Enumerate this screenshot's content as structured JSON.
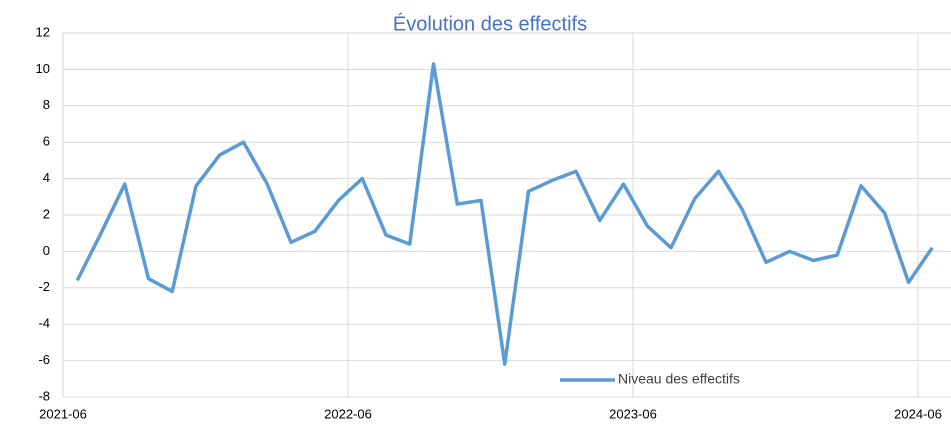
{
  "chart_data": {
    "type": "line",
    "title": "Évolution des effectifs",
    "x": [
      "2021-06",
      "2021-07",
      "2021-08",
      "2021-09",
      "2021-10",
      "2021-11",
      "2021-12",
      "2022-01",
      "2022-02",
      "2022-03",
      "2022-04",
      "2022-05",
      "2022-06",
      "2022-07",
      "2022-08",
      "2022-09",
      "2022-10",
      "2022-11",
      "2022-12",
      "2023-01",
      "2023-02",
      "2023-03",
      "2023-04",
      "2023-05",
      "2023-06",
      "2023-07",
      "2023-08",
      "2023-09",
      "2023-10",
      "2023-11",
      "2023-12",
      "2024-01",
      "2024-02",
      "2024-03",
      "2024-04",
      "2024-05",
      "2024-06"
    ],
    "series": [
      {
        "name": "Niveau des effectifs",
        "color": "#5b9bd5",
        "values": [
          -1.6,
          1.0,
          3.7,
          -1.5,
          -2.2,
          3.6,
          5.3,
          6.0,
          3.7,
          0.5,
          1.1,
          2.8,
          4.0,
          0.9,
          0.4,
          10.3,
          2.6,
          2.8,
          -6.2,
          3.3,
          3.9,
          4.4,
          1.7,
          3.7,
          1.4,
          0.2,
          2.9,
          4.4,
          2.3,
          -0.6,
          0.0,
          -0.5,
          -0.2,
          3.6,
          2.1,
          -1.7,
          0.2
        ]
      }
    ],
    "xticks": [
      "2021-06",
      "2022-06",
      "2023-06",
      "2024-06"
    ],
    "ylim": [
      -8,
      12
    ],
    "yticks": [
      -8,
      -6,
      -4,
      -2,
      0,
      2,
      4,
      6,
      8,
      10,
      12
    ],
    "grid": true,
    "legend": "bottom"
  }
}
